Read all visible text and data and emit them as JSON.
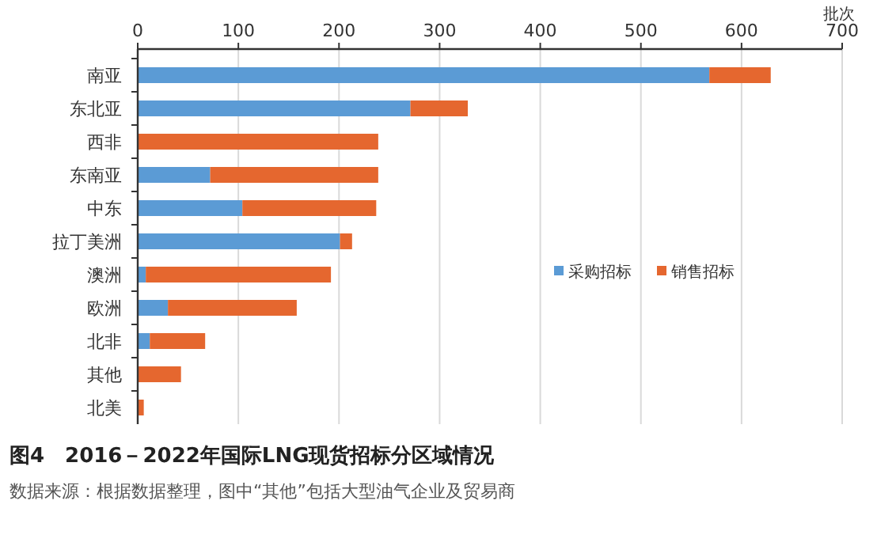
{
  "chart_data": {
    "type": "bar",
    "orientation": "horizontal",
    "stacked": true,
    "title": "图4　2016－2022年国际LNG现货招标分区域情况",
    "xlabel": "批次",
    "categories": [
      "南亚",
      "东北亚",
      "西非",
      "东南亚",
      "中东",
      "拉丁美洲",
      "澳洲",
      "欧洲",
      "北非",
      "其他",
      "北美"
    ],
    "series": [
      {
        "name": "采购招标",
        "color": "#5b9bd5",
        "values": [
          568,
          271,
          0,
          72,
          104,
          201,
          8,
          30,
          12,
          0,
          0
        ]
      },
      {
        "name": "销售招标",
        "color": "#e5672f",
        "values": [
          61,
          57,
          239,
          167,
          133,
          12,
          184,
          128,
          55,
          43,
          6
        ]
      }
    ],
    "xlim": [
      0,
      700
    ],
    "xticks": [
      0,
      100,
      200,
      300,
      400,
      500,
      600,
      700
    ],
    "grid": "x",
    "legend": "right",
    "annotations": [
      "数据来源：根据数据整理，图中“其他”包括大型油气企业及贸易商"
    ]
  }
}
